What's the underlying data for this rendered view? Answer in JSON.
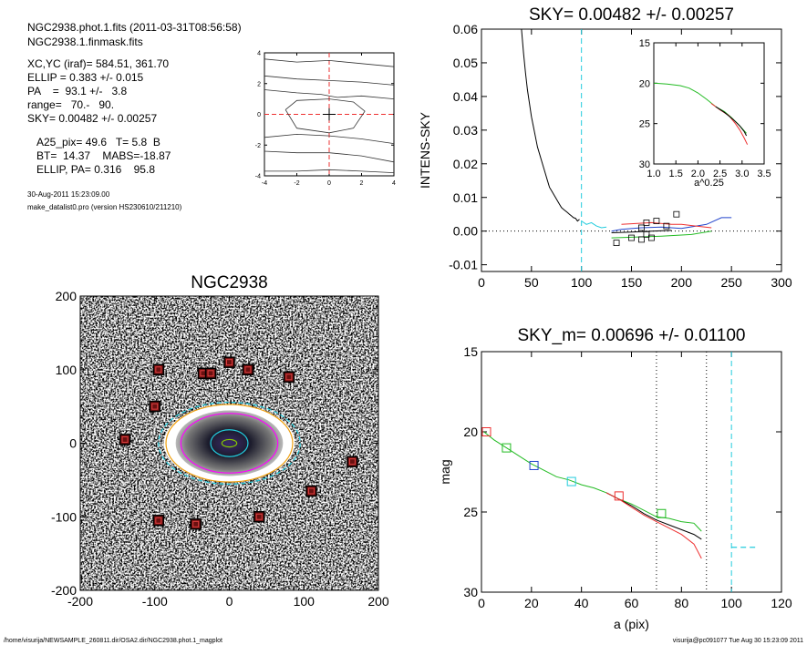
{
  "header": {
    "file_line": "NGC2938.phot.1.fits  (2011-03-31T08:56:58)",
    "mask_line": "NGC2938.1.finmask.fits",
    "stats": [
      "XC,YC (iraf)=   584.51, 361.70",
      "ELLIP = 0.383 +/- 0.015",
      "PA    =  93.1 +/-   3.8",
      "range=   70.-   90.",
      "SKY= 0.00482 +/- 0.00257"
    ],
    "params": [
      "A25_pix= 49.6   T= 5.8  B",
      "BT=  14.37    MABS=-18.87",
      "ELLIP, PA= 0.316    95.8"
    ],
    "date": "30-Aug-2011 15:23:09.00",
    "program": "make_datalist0.pro (version HS230610/211210)"
  },
  "footer": {
    "path": "/home/visurija/NEWSAMPLE_260811.dir/OSA2.dir/NGC2938.phot.1_magplot",
    "user": "visurija@pc091077  Tue Aug 30 15:23:09 2011"
  },
  "colors": {
    "red": "#ee3030",
    "green": "#22bb22",
    "blue": "#2244cc",
    "cyan": "#22ccdd",
    "black": "#000000"
  },
  "chart_data": [
    {
      "id": "contour",
      "type": "line",
      "title": "",
      "xlim": [
        -4,
        4
      ],
      "ylim": [
        -4,
        4
      ],
      "xticks": [
        -4,
        -2,
        0,
        2,
        4
      ],
      "yticks": [
        -4,
        -2,
        0,
        2,
        4
      ],
      "contours": [
        [
          [
            -4,
            3.6
          ],
          [
            -2,
            3.4
          ],
          [
            0,
            3.5
          ],
          [
            2,
            3.3
          ],
          [
            4,
            3.1
          ]
        ],
        [
          [
            -4,
            2.5
          ],
          [
            -2,
            2.3
          ],
          [
            0,
            2.2
          ],
          [
            2,
            2.1
          ],
          [
            4,
            1.9
          ]
        ],
        [
          [
            -4,
            1.6
          ],
          [
            -2,
            1.4
          ],
          [
            -0.5,
            1.3
          ],
          [
            0.5,
            1.1
          ],
          [
            2,
            1.2
          ],
          [
            4,
            1.0
          ]
        ],
        [
          [
            -4,
            -1.5
          ],
          [
            -2,
            -1.3
          ],
          [
            0,
            -1.4
          ],
          [
            2,
            -1.6
          ],
          [
            4,
            -1.9
          ]
        ],
        [
          [
            -4,
            -2.4
          ],
          [
            -2,
            -2.5
          ],
          [
            0,
            -2.5
          ],
          [
            2,
            -2.7
          ],
          [
            4,
            -3.1
          ]
        ],
        [
          [
            -4,
            -3.7
          ],
          [
            -2,
            -3.7
          ],
          [
            0,
            -3.6
          ],
          [
            2,
            -3.7
          ],
          [
            4,
            -3.8
          ]
        ],
        [
          [
            -2.7,
            0.3
          ],
          [
            -2,
            0.9
          ],
          [
            0,
            1.0
          ],
          [
            1.5,
            0.8
          ],
          [
            2.2,
            0.2
          ],
          [
            1.5,
            -0.9
          ],
          [
            0,
            -1.2
          ],
          [
            -2,
            -0.9
          ],
          [
            -2.7,
            0.3
          ]
        ]
      ]
    },
    {
      "id": "sky",
      "type": "line",
      "title": "SKY= 0.00482 +/- 0.00257",
      "xlabel": "",
      "ylabel": "INTENS-SKY",
      "xlim": [
        0,
        300
      ],
      "ylim": [
        -0.012,
        0.06
      ],
      "xticks": [
        0,
        50,
        100,
        150,
        200,
        250,
        300
      ],
      "yticks": [
        -0.01,
        0.0,
        0.01,
        0.02,
        0.03,
        0.04,
        0.05,
        0.06
      ],
      "ytick_labels": [
        "-0.01",
        "0.00",
        "0.01",
        "0.02",
        "0.03",
        "0.04",
        "0.05",
        "0.06"
      ],
      "vline": 100,
      "series": [
        {
          "color": "black",
          "points": [
            [
              40,
              0.06
            ],
            [
              42,
              0.053
            ],
            [
              44,
              0.047
            ],
            [
              46,
              0.042
            ],
            [
              48,
              0.038
            ],
            [
              50,
              0.034
            ],
            [
              52,
              0.031
            ],
            [
              54,
              0.028
            ],
            [
              56,
              0.025
            ],
            [
              58,
              0.023
            ],
            [
              60,
              0.021
            ],
            [
              62,
              0.019
            ],
            [
              64,
              0.017
            ],
            [
              66,
              0.015
            ],
            [
              68,
              0.013
            ],
            [
              70,
              0.012
            ],
            [
              72,
              0.011
            ],
            [
              74,
              0.01
            ],
            [
              76,
              0.009
            ],
            [
              78,
              0.008
            ],
            [
              80,
              0.007
            ],
            [
              82,
              0.0065
            ],
            [
              84,
              0.006
            ],
            [
              86,
              0.0055
            ],
            [
              88,
              0.005
            ],
            [
              90,
              0.0045
            ],
            [
              92,
              0.004
            ],
            [
              94,
              0.0038
            ],
            [
              96,
              0.003
            ],
            [
              98,
              0.0035
            ]
          ]
        },
        {
          "color": "cyan",
          "points": [
            [
              100,
              0.003
            ],
            [
              105,
              0.002
            ],
            [
              110,
              0.0025
            ],
            [
              115,
              0.0015
            ],
            [
              120,
              0.001
            ],
            [
              125,
              0.0012
            ]
          ]
        },
        {
          "color": "blue",
          "points": [
            [
              130,
              0.0
            ],
            [
              140,
              0.0005
            ],
            [
              160,
              0.001
            ],
            [
              180,
              0.0012
            ],
            [
              200,
              0.0008
            ],
            [
              225,
              0.002
            ],
            [
              240,
              0.004
            ],
            [
              250,
              0.004
            ]
          ]
        },
        {
          "color": "green",
          "points": [
            [
              130,
              -0.002
            ],
            [
              180,
              -0.0015
            ],
            [
              210,
              -0.001
            ],
            [
              230,
              0.0
            ]
          ]
        },
        {
          "color": "red",
          "points": [
            [
              140,
              0.002
            ],
            [
              170,
              0.0025
            ],
            [
              190,
              0.002
            ],
            [
              200,
              0.002
            ],
            [
              230,
              0.001
            ]
          ]
        },
        {
          "color": "black",
          "points": [
            [
              130,
              -0.0005
            ],
            [
              150,
              -0.0003
            ],
            [
              170,
              0.0
            ],
            [
              190,
              0.0002
            ]
          ]
        }
      ],
      "markers": [
        [
          135,
          -0.0035
        ],
        [
          150,
          -0.002
        ],
        [
          160,
          -0.0025
        ],
        [
          165,
          -0.001
        ],
        [
          170,
          -0.002
        ],
        [
          160,
          0.001
        ],
        [
          165,
          0.0025
        ],
        [
          175,
          0.003
        ],
        [
          185,
          0.0015
        ],
        [
          195,
          0.005
        ]
      ],
      "inset": {
        "xlim": [
          1.0,
          3.5
        ],
        "ylim": [
          30,
          15
        ],
        "xlabel": "a^0.25",
        "xticks": [
          1.0,
          1.5,
          2.0,
          2.5,
          3.0,
          3.5
        ],
        "xtick_labels": [
          "1.0",
          "1.5",
          "2.0",
          "2.5",
          "3.0",
          "3.5"
        ],
        "yticks": [
          15,
          20,
          25,
          30
        ],
        "series": [
          {
            "color": "green",
            "points": [
              [
                1.0,
                20.0
              ],
              [
                1.3,
                20.1
              ],
              [
                1.6,
                20.3
              ],
              [
                1.8,
                20.6
              ],
              [
                2.0,
                21.2
              ],
              [
                2.2,
                22.0
              ],
              [
                2.4,
                22.9
              ],
              [
                2.6,
                23.5
              ],
              [
                2.75,
                24.2
              ],
              [
                2.9,
                25.0
              ],
              [
                3.0,
                25.6
              ],
              [
                3.1,
                26.2
              ]
            ]
          },
          {
            "color": "red",
            "points": [
              [
                2.3,
                22.5
              ],
              [
                2.5,
                23.3
              ],
              [
                2.7,
                24.0
              ],
              [
                2.85,
                25.0
              ],
              [
                2.95,
                25.8
              ],
              [
                3.05,
                26.8
              ],
              [
                3.12,
                27.6
              ]
            ]
          },
          {
            "color": "black",
            "points": [
              [
                2.4,
                22.9
              ],
              [
                2.6,
                23.6
              ],
              [
                2.8,
                24.5
              ],
              [
                2.95,
                25.3
              ],
              [
                3.05,
                26.0
              ],
              [
                3.1,
                26.5
              ]
            ]
          }
        ]
      }
    },
    {
      "id": "image",
      "type": "scatter",
      "title": "NGC2938",
      "xlim": [
        -200,
        200
      ],
      "ylim": [
        -200,
        200
      ],
      "xticks": [
        -200,
        -100,
        0,
        100,
        200
      ],
      "yticks": [
        -200,
        -100,
        0,
        100,
        200
      ],
      "mask_boxes": [
        [
          -95,
          100
        ],
        [
          -100,
          50
        ],
        [
          -140,
          5
        ],
        [
          -95,
          -105
        ],
        [
          -45,
          -110
        ],
        [
          -35,
          95
        ],
        [
          -25,
          95
        ],
        [
          0,
          110
        ],
        [
          25,
          100
        ],
        [
          80,
          90
        ],
        [
          40,
          -100
        ],
        [
          110,
          -65
        ],
        [
          165,
          -25
        ]
      ],
      "ellipses": [
        {
          "color": "cyan",
          "a": 95,
          "b": 55
        },
        {
          "color": "#f0a010",
          "a": 85,
          "b": 52
        },
        {
          "color": "magenta",
          "a": 65,
          "b": 40
        },
        {
          "color": "cyan",
          "a": 25,
          "b": 18
        },
        {
          "color": "#88cc00",
          "a": 10,
          "b": 5
        }
      ]
    },
    {
      "id": "profile",
      "type": "line",
      "title": "SKY_m=  0.00696 +/- 0.01100",
      "xlabel": "a (pix)",
      "ylabel": "mag",
      "xlim": [
        0,
        120
      ],
      "ylim": [
        30,
        15
      ],
      "xticks": [
        0,
        20,
        40,
        60,
        80,
        100,
        120
      ],
      "yticks": [
        15,
        20,
        25,
        30
      ],
      "vlines_dotted": [
        70,
        90
      ],
      "vline_dashed": 100,
      "sky_segment": [
        [
          100,
          27.2
        ],
        [
          110,
          27.2
        ]
      ],
      "series": [
        {
          "color": "green",
          "points": [
            [
              1,
              20.0
            ],
            [
              5,
              20.5
            ],
            [
              10,
              21.0
            ],
            [
              15,
              21.5
            ],
            [
              20,
              22.0
            ],
            [
              25,
              22.4
            ],
            [
              30,
              22.8
            ],
            [
              35,
              23.0
            ],
            [
              40,
              23.3
            ],
            [
              45,
              23.5
            ],
            [
              50,
              23.8
            ],
            [
              55,
              24.2
            ],
            [
              60,
              24.5
            ],
            [
              65,
              24.9
            ],
            [
              70,
              25.3
            ],
            [
              75,
              25.4
            ],
            [
              80,
              25.6
            ],
            [
              85,
              25.7
            ],
            [
              88,
              26.2
            ]
          ]
        },
        {
          "color": "black",
          "points": [
            [
              50,
              23.8
            ],
            [
              55,
              24.2
            ],
            [
              60,
              24.6
            ],
            [
              65,
              25.1
            ],
            [
              70,
              25.5
            ],
            [
              75,
              25.8
            ],
            [
              80,
              26.1
            ],
            [
              85,
              26.4
            ],
            [
              88,
              26.7
            ]
          ]
        },
        {
          "color": "red",
          "points": [
            [
              50,
              23.8
            ],
            [
              55,
              24.2
            ],
            [
              60,
              24.7
            ],
            [
              65,
              25.2
            ],
            [
              70,
              25.6
            ],
            [
              75,
              26.0
            ],
            [
              80,
              26.4
            ],
            [
              85,
              27.0
            ],
            [
              88,
              27.9
            ]
          ]
        }
      ],
      "markers": [
        {
          "color": "red",
          "x": 2,
          "y": 20.0
        },
        {
          "color": "green",
          "x": 10,
          "y": 21.0
        },
        {
          "color": "blue",
          "x": 21,
          "y": 22.1
        },
        {
          "color": "cyan",
          "x": 36,
          "y": 23.1
        },
        {
          "color": "red",
          "x": 55,
          "y": 24.0
        },
        {
          "color": "green",
          "x": 72,
          "y": 25.1
        }
      ]
    }
  ]
}
